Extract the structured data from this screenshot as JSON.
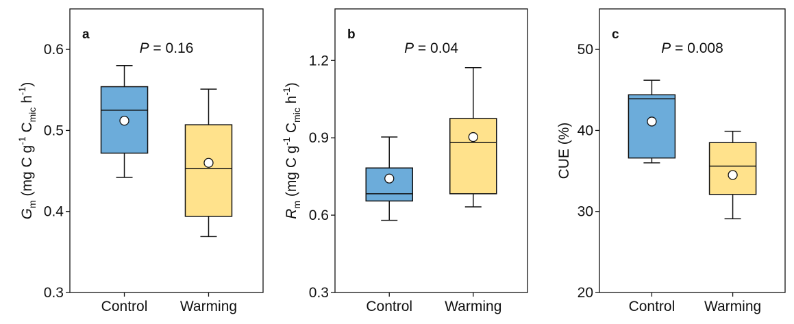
{
  "chart_data": [
    {
      "panel": "a",
      "type": "box",
      "annotation_var": "P",
      "annotation_rest": " = 0.16",
      "ylabel": {
        "var": "G",
        "var_sub": "m",
        "t1": " (mg C g",
        "sup1": "-1",
        "t2": " C",
        "sub2": "mic",
        "t3": " h",
        "sup2": "-1",
        "t4": ")"
      },
      "ylim": [
        0.3,
        0.65
      ],
      "yticks": [
        0.3,
        0.4,
        0.5,
        0.6
      ],
      "ytick_labels": [
        "0.3",
        "0.4",
        "0.5",
        "0.6"
      ],
      "categories": [
        "Control",
        "Warming"
      ],
      "boxes": [
        {
          "name": "Control",
          "whisker_low": 0.442,
          "q1": 0.472,
          "median": 0.525,
          "q3": 0.554,
          "whisker_high": 0.58,
          "mean": 0.512,
          "color": "#6CACDA"
        },
        {
          "name": "Warming",
          "whisker_low": 0.369,
          "q1": 0.394,
          "median": 0.453,
          "q3": 0.507,
          "whisker_high": 0.551,
          "mean": 0.46,
          "color": "#FFE28C"
        }
      ]
    },
    {
      "panel": "b",
      "type": "box",
      "annotation_var": "P",
      "annotation_rest": " = 0.04",
      "ylabel": {
        "var": "R",
        "var_sub": "m",
        "t1": " (mg C g",
        "sup1": "-1",
        "t2": " C",
        "sub2": "mic",
        "t3": " h",
        "sup2": "-1",
        "t4": ")"
      },
      "ylim": [
        0.3,
        1.4
      ],
      "yticks": [
        0.3,
        0.6,
        0.9,
        1.2
      ],
      "ytick_labels": [
        "0.3",
        "0.6",
        "0.9",
        "1.2"
      ],
      "categories": [
        "Control",
        "Warming"
      ],
      "boxes": [
        {
          "name": "Control",
          "whisker_low": 0.58,
          "q1": 0.655,
          "median": 0.683,
          "q3": 0.783,
          "whisker_high": 0.903,
          "mean": 0.742,
          "color": "#6CACDA"
        },
        {
          "name": "Warming",
          "whisker_low": 0.632,
          "q1": 0.683,
          "median": 0.882,
          "q3": 0.975,
          "whisker_high": 1.172,
          "mean": 0.903,
          "color": "#FFE28C"
        }
      ]
    },
    {
      "panel": "c",
      "type": "box",
      "annotation_var": "P",
      "annotation_rest": " = 0.008",
      "ylabel": {
        "text": "CUE (%)"
      },
      "ylim": [
        20,
        55
      ],
      "yticks": [
        20,
        30,
        40,
        50
      ],
      "ytick_labels": [
        "20",
        "30",
        "40",
        "50"
      ],
      "categories": [
        "Control",
        "Warming"
      ],
      "boxes": [
        {
          "name": "Control",
          "whisker_low": 36.0,
          "q1": 36.6,
          "median": 43.9,
          "q3": 44.4,
          "whisker_high": 46.2,
          "mean": 41.1,
          "color": "#6CACDA"
        },
        {
          "name": "Warming",
          "whisker_low": 29.1,
          "q1": 32.1,
          "median": 35.6,
          "q3": 38.5,
          "whisker_high": 39.9,
          "mean": 34.5,
          "color": "#FFE28C"
        }
      ]
    }
  ]
}
